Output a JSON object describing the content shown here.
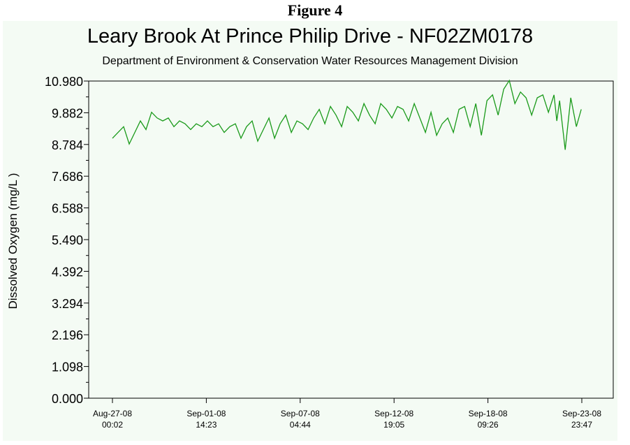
{
  "figure_label": "Figure 4",
  "colors": {
    "background": "#f4fbf4",
    "series": "#1a9a1a",
    "axis": "#000000"
  },
  "chart_data": {
    "type": "line",
    "title": "Leary Brook At Prince Philip Drive - NF02ZM0178",
    "subtitle": "Department of Environment & Conservation Water Resources Management Division",
    "ylabel": "Dissolved Oxygen (mg/L )",
    "xlabel": "",
    "grid": false,
    "ylim": [
      0.0,
      10.98
    ],
    "xlim": [
      "2008-08-27 00:02",
      "2008-09-23 23:47"
    ],
    "y_ticks": [
      "0.000",
      "1.098",
      "2.196",
      "3.294",
      "4.392",
      "5.490",
      "6.588",
      "7.686",
      "8.784",
      "9.882",
      "10.980"
    ],
    "x_ticks": [
      {
        "date": "Aug-27-08",
        "time": "00:02"
      },
      {
        "date": "Sep-01-08",
        "time": "14:23"
      },
      {
        "date": "Sep-07-08",
        "time": "04:44"
      },
      {
        "date": "Sep-12-08",
        "time": "19:05"
      },
      {
        "date": "Sep-18-08",
        "time": "09:26"
      },
      {
        "date": "Sep-23-08",
        "time": "23:47"
      }
    ],
    "series": [
      {
        "x": [
          "2008-08-27 00:00",
          "2008-08-27 08:00",
          "2008-08-27 16:00",
          "2008-08-28 00:00",
          "2008-08-28 08:00",
          "2008-08-28 16:00",
          "2008-08-29 00:00",
          "2008-08-29 08:00",
          "2008-08-29 16:00",
          "2008-08-30 00:00",
          "2008-08-30 08:00",
          "2008-08-30 16:00",
          "2008-08-31 00:00",
          "2008-08-31 08:00",
          "2008-08-31 16:00",
          "2008-09-01 00:00",
          "2008-09-01 08:00",
          "2008-09-01 16:00",
          "2008-09-02 00:00",
          "2008-09-02 08:00",
          "2008-09-02 16:00",
          "2008-09-03 00:00",
          "2008-09-03 08:00",
          "2008-09-03 16:00",
          "2008-09-04 00:00",
          "2008-09-04 08:00",
          "2008-09-04 16:00",
          "2008-09-05 00:00",
          "2008-09-05 08:00",
          "2008-09-05 16:00",
          "2008-09-06 00:00",
          "2008-09-06 08:00",
          "2008-09-06 16:00",
          "2008-09-07 00:00",
          "2008-09-07 08:00",
          "2008-09-07 16:00",
          "2008-09-08 00:00",
          "2008-09-08 08:00",
          "2008-09-08 16:00",
          "2008-09-09 00:00",
          "2008-09-09 08:00",
          "2008-09-09 16:00",
          "2008-09-10 00:00",
          "2008-09-10 08:00",
          "2008-09-10 16:00",
          "2008-09-11 00:00",
          "2008-09-11 08:00",
          "2008-09-11 16:00",
          "2008-09-12 00:00",
          "2008-09-12 08:00",
          "2008-09-12 16:00",
          "2008-09-13 00:00",
          "2008-09-13 08:00",
          "2008-09-13 16:00",
          "2008-09-14 00:00",
          "2008-09-14 08:00",
          "2008-09-14 16:00",
          "2008-09-15 00:00",
          "2008-09-15 08:00",
          "2008-09-15 16:00",
          "2008-09-16 00:00",
          "2008-09-16 08:00",
          "2008-09-16 16:00",
          "2008-09-17 00:00",
          "2008-09-17 08:00",
          "2008-09-17 16:00",
          "2008-09-18 00:00",
          "2008-09-18 08:00",
          "2008-09-18 16:00",
          "2008-09-19 00:00",
          "2008-09-19 08:00",
          "2008-09-19 16:00",
          "2008-09-20 00:00",
          "2008-09-20 08:00",
          "2008-09-20 16:00",
          "2008-09-21 00:00",
          "2008-09-21 08:00",
          "2008-09-21 16:00",
          "2008-09-22 00:00",
          "2008-09-22 08:00",
          "2008-09-22 12:00",
          "2008-09-22 16:00",
          "2008-09-23 00:00",
          "2008-09-23 08:00",
          "2008-09-23 16:00",
          "2008-09-23 23:00"
        ],
        "y": [
          9.0,
          9.2,
          9.4,
          8.8,
          9.2,
          9.6,
          9.3,
          9.9,
          9.7,
          9.6,
          9.7,
          9.4,
          9.6,
          9.5,
          9.3,
          9.5,
          9.4,
          9.6,
          9.4,
          9.5,
          9.2,
          9.4,
          9.5,
          9.0,
          9.4,
          9.6,
          8.9,
          9.3,
          9.7,
          9.0,
          9.5,
          9.8,
          9.2,
          9.6,
          9.5,
          9.3,
          9.7,
          10.0,
          9.5,
          10.1,
          9.8,
          9.4,
          10.1,
          9.9,
          9.6,
          10.2,
          9.8,
          9.5,
          10.2,
          10.0,
          9.7,
          10.1,
          10.0,
          9.6,
          10.2,
          9.7,
          9.2,
          9.9,
          9.1,
          9.5,
          9.7,
          9.2,
          10.0,
          10.1,
          9.4,
          10.2,
          9.1,
          10.3,
          10.5,
          9.8,
          10.7,
          11.0,
          10.2,
          10.6,
          10.4,
          9.8,
          10.4,
          10.5,
          9.9,
          10.5,
          9.6,
          10.3,
          8.6,
          10.4,
          9.4,
          10.0
        ]
      }
    ]
  }
}
